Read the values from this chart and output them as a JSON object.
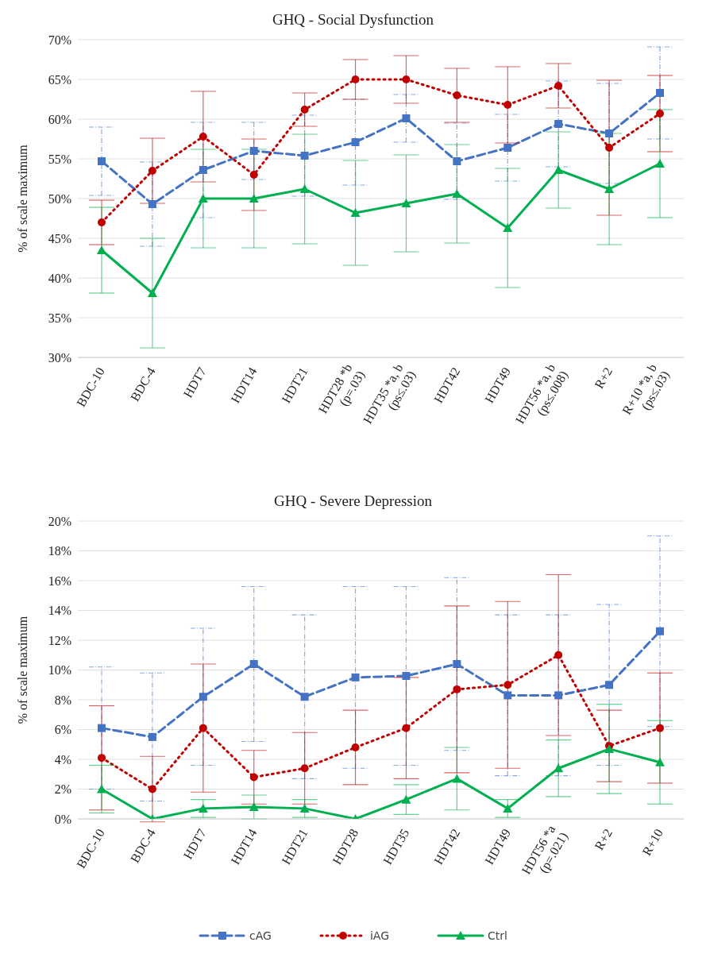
{
  "chart_data": [
    {
      "type": "line",
      "title": "GHQ - Social Dysfunction",
      "ylabel": "% of scale maximum",
      "categories": [
        "BDC-10",
        "BDC-4",
        "HDT7",
        "HDT14",
        "HDT21",
        "HDT28 *b\n(p=.03)",
        "HDT35 *a, b\n(ps≤.03)",
        "HDT42",
        "HDT49",
        "HDT56 *a, b\n(ps≤.008)",
        "R+2",
        "R+10 *a, b\n(ps≤.03)"
      ],
      "ylim": [
        30,
        70
      ],
      "yticks": [
        {
          "value": 30,
          "label": "30%"
        },
        {
          "value": 35,
          "label": "35%"
        },
        {
          "value": 40,
          "label": "40%"
        },
        {
          "value": 45,
          "label": "45%"
        },
        {
          "value": 50,
          "label": "50%"
        },
        {
          "value": 55,
          "label": "55%"
        },
        {
          "value": 60,
          "label": "60%"
        },
        {
          "value": 65,
          "label": "65%"
        },
        {
          "value": 70,
          "label": "70%"
        }
      ],
      "grid": "y",
      "series": [
        {
          "color": "#4472c4",
          "line_style": "dashed",
          "marker": "square",
          "values": [
            54.7,
            49.3,
            53.6,
            56.0,
            55.4,
            57.1,
            60.1,
            54.7,
            56.4,
            59.4,
            58.2,
            63.3
          ],
          "errors": [
            4.3,
            5.3,
            6.0,
            3.6,
            5.1,
            5.4,
            3.0,
            4.8,
            4.2,
            5.4,
            6.3,
            5.8
          ]
        },
        {
          "color": "#c00000",
          "line_style": "dotted",
          "marker": "circle",
          "values": [
            47.0,
            53.5,
            57.8,
            53.0,
            61.2,
            65.0,
            65.0,
            63.0,
            61.8,
            64.2,
            56.4,
            60.7
          ],
          "errors": [
            2.8,
            4.1,
            5.7,
            4.5,
            2.1,
            2.5,
            3.0,
            3.4,
            4.8,
            2.8,
            8.5,
            4.8
          ]
        },
        {
          "color": "#00b050",
          "line_style": "solid",
          "marker": "triangle",
          "values": [
            43.5,
            38.1,
            50.0,
            50.0,
            51.2,
            48.2,
            49.4,
            50.6,
            46.3,
            53.6,
            51.2,
            54.4
          ],
          "errors": [
            5.4,
            6.9,
            6.2,
            6.2,
            6.9,
            6.6,
            6.1,
            6.2,
            7.5,
            4.8,
            7.0,
            6.8
          ]
        }
      ]
    },
    {
      "type": "line",
      "title": "GHQ - Severe Depression",
      "ylabel": "% of scale maximum",
      "categories": [
        "BDC-10",
        "BDC-4",
        "HDT7",
        "HDT14",
        "HDT21",
        "HDT28",
        "HDT35",
        "HDT42",
        "HDT49",
        "HDT56 *a\n(p=.021)",
        "R+2",
        "R+10"
      ],
      "ylim": [
        0,
        20
      ],
      "yticks": [
        {
          "value": 0,
          "label": "0%"
        },
        {
          "value": 2,
          "label": "2%"
        },
        {
          "value": 4,
          "label": "4%"
        },
        {
          "value": 6,
          "label": "6%"
        },
        {
          "value": 8,
          "label": "8%"
        },
        {
          "value": 10,
          "label": "10%"
        },
        {
          "value": 12,
          "label": "12%"
        },
        {
          "value": 14,
          "label": "14%"
        },
        {
          "value": 16,
          "label": "16%"
        },
        {
          "value": 18,
          "label": "18%"
        },
        {
          "value": 20,
          "label": "20%"
        }
      ],
      "grid": "y",
      "legend": "bottom",
      "series": [
        {
          "name": "cAG",
          "color": "#4472c4",
          "line_style": "dashed",
          "marker": "square",
          "values": [
            6.1,
            5.5,
            8.2,
            10.4,
            8.2,
            9.5,
            9.6,
            10.4,
            8.3,
            8.3,
            9.0,
            12.6
          ],
          "errors": [
            4.1,
            4.3,
            4.6,
            5.2,
            5.5,
            6.1,
            6.0,
            5.8,
            5.4,
            5.4,
            5.4,
            6.4
          ]
        },
        {
          "name": "iAG",
          "color": "#c00000",
          "line_style": "dotted",
          "marker": "circle",
          "values": [
            4.1,
            2.0,
            6.1,
            2.8,
            3.4,
            4.8,
            6.1,
            8.7,
            9.0,
            11.0,
            4.9,
            6.1
          ],
          "errors": [
            3.5,
            2.2,
            4.3,
            1.8,
            2.4,
            2.5,
            3.4,
            5.6,
            5.6,
            5.4,
            2.4,
            3.7
          ]
        },
        {
          "name": "Ctrl",
          "color": "#00b050",
          "line_style": "solid",
          "marker": "triangle",
          "values": [
            2.0,
            0,
            0.7,
            0.8,
            0.7,
            0,
            1.3,
            2.7,
            0.7,
            3.4,
            4.7,
            3.8
          ],
          "errors": [
            1.6,
            null,
            0.6,
            0.8,
            0.6,
            null,
            1.0,
            2.1,
            0.6,
            1.9,
            3.0,
            2.8
          ]
        }
      ]
    }
  ]
}
